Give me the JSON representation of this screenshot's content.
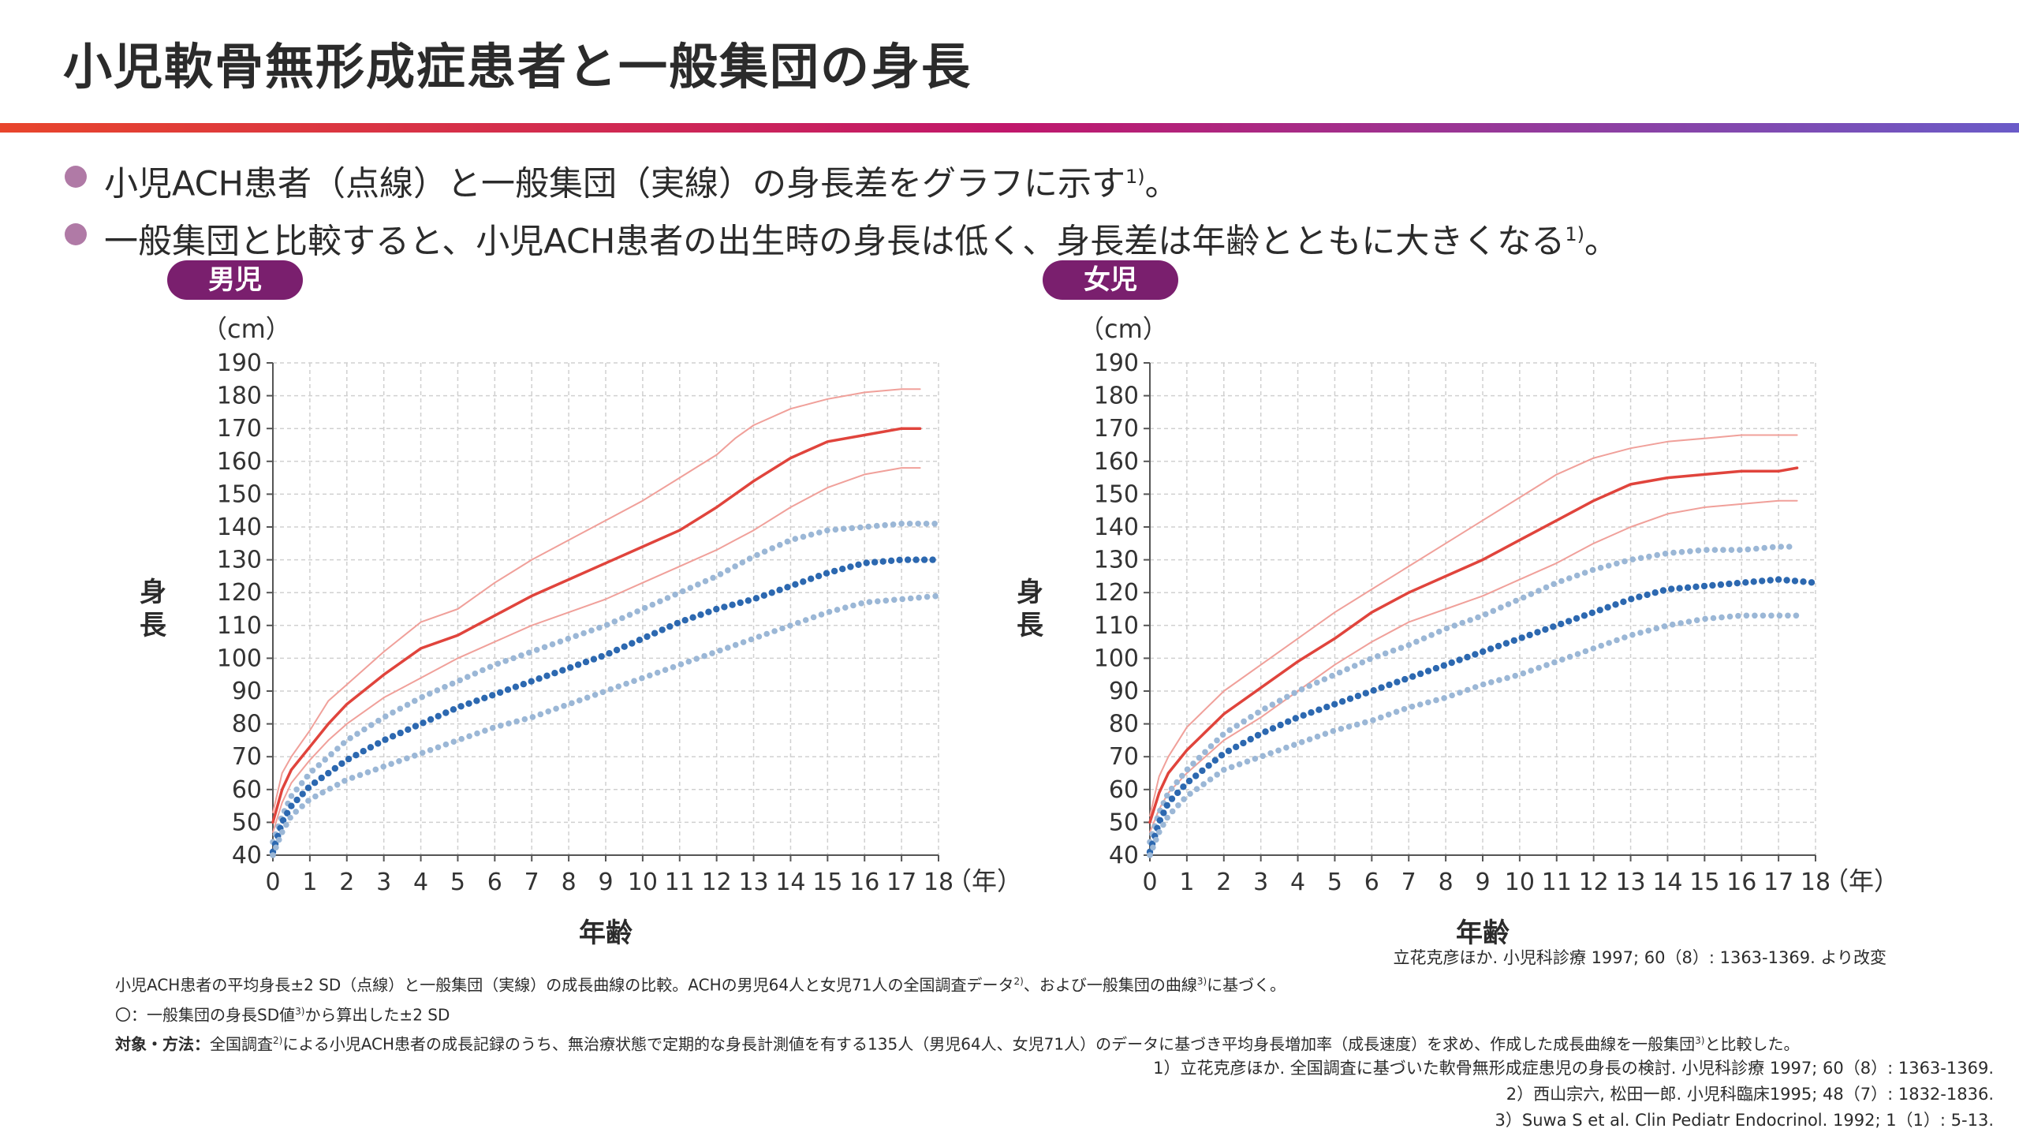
{
  "title": "小児軟骨無形成症患者と一般集団の身長",
  "colors": {
    "accent_gradient": [
      "#e8452c",
      "#c0176b",
      "#6a5bc8"
    ],
    "bullet_dot": "#b07aa6",
    "badge": "#7a1f6e",
    "general_mean": "#e0443c",
    "general_sd": "#f0a09a",
    "ach_mean": "#2c68b0",
    "ach_sd": "#9bb7d6",
    "grid": "#d0d0d0",
    "axis": "#555555"
  },
  "bullets": [
    {
      "text": "小児ACH患者（点線）と一般集団（実線）の身長差をグラフに示す",
      "sup": "1)",
      "tail": "。"
    },
    {
      "text": "一般集団と比較すると、小児ACH患者の出生時の身長は低く、身長差は年齢とともに大きくなる",
      "sup": "1)",
      "tail": "。"
    }
  ],
  "panels": [
    {
      "badge": "男児",
      "unit": "（cm）",
      "ylabel": "身長",
      "xlabel": "年齢",
      "x_unit": "（年）"
    },
    {
      "badge": "女児",
      "unit": "（cm）",
      "ylabel": "身長",
      "xlabel": "年齢",
      "x_unit": "（年）"
    }
  ],
  "source": {
    "text": "立花克彦ほか. 小児科診療 1997; 60（8）: 1363-1369. より改変"
  },
  "notes": {
    "line1_a": "小児ACH患者の平均身長±2 SD（点線）と一般集団（実線）の成長曲線の比較。ACHの男児64人と女児71人の全国調査データ",
    "line1_sup1": "2)",
    "line1_b": "、および一般集団の曲線",
    "line1_sup2": "3)",
    "line1_c": "に基づく。",
    "line2_a": "〇：一般集団の身長SD値",
    "line2_sup": "3)",
    "line2_b": "から算出した±2 SD",
    "line3_label": "対象・方法：",
    "line3_a": "全国調査",
    "line3_sup1": "2)",
    "line3_b": "による小児ACH患者の成長記録のうち、無治療状態で定期的な身長計測値を有する135人（男児64人、女児71人）のデータに基づき平均身長増加率（成長速度）を求め、作成した成長曲線を一般集団",
    "line3_sup2": "3)",
    "line3_c": "と比較した。"
  },
  "references": [
    "1）立花克彦ほか. 全国調査に基づいた軟骨無形成症患児の身長の検討. 小児科診療 1997; 60（8）: 1363-1369.",
    "2）西山宗六, 松田一郎. 小児科臨床1995; 48（7）: 1832-1836.",
    "3）Suwa S et al. Clin Pediatr Endocrinol. 1992; 1（1）: 5-13."
  ],
  "chart_data": [
    {
      "type": "line",
      "title": "男児",
      "xlabel": "年齢",
      "ylabel": "身長",
      "x_unit": "（年）",
      "y_unit": "（cm）",
      "xlim": [
        0,
        18
      ],
      "ylim": [
        40,
        190
      ],
      "grid": true,
      "x_ticks": [
        0,
        1,
        2,
        3,
        4,
        5,
        6,
        7,
        8,
        9,
        10,
        11,
        12,
        13,
        14,
        15,
        16,
        17,
        18
      ],
      "y_ticks": [
        40,
        50,
        60,
        70,
        80,
        90,
        100,
        110,
        120,
        130,
        140,
        150,
        160,
        170,
        180,
        190
      ],
      "series": [
        {
          "style": "general_sd",
          "x": [
            0,
            0.25,
            0.5,
            1,
            1.5,
            2,
            3,
            4,
            5,
            6,
            7,
            8,
            9,
            10,
            11,
            12,
            12.5,
            13,
            14,
            15,
            16,
            17,
            17.5
          ],
          "y": [
            53,
            65,
            70,
            78,
            87,
            92,
            102,
            111,
            115,
            123,
            130,
            136,
            142,
            148,
            155,
            162,
            167,
            171,
            176,
            179,
            181,
            182,
            182
          ]
        },
        {
          "style": "general_mean",
          "x": [
            0,
            0.25,
            0.5,
            1,
            1.5,
            2,
            3,
            4,
            5,
            6,
            7,
            8,
            9,
            10,
            11,
            12,
            12.5,
            13,
            14,
            15,
            16,
            17,
            17.5
          ],
          "y": [
            50,
            60,
            66,
            73,
            80,
            86,
            95,
            103,
            107,
            113,
            119,
            124,
            129,
            134,
            139,
            146,
            150,
            154,
            161,
            166,
            168,
            170,
            170
          ]
        },
        {
          "style": "general_sd",
          "x": [
            0,
            0.25,
            0.5,
            1,
            1.5,
            2,
            3,
            4,
            5,
            6,
            7,
            8,
            9,
            10,
            11,
            12,
            12.5,
            13,
            14,
            15,
            16,
            17,
            17.5
          ],
          "y": [
            47,
            56,
            62,
            69,
            75,
            80,
            88,
            94,
            100,
            105,
            110,
            114,
            118,
            123,
            128,
            133,
            136,
            139,
            146,
            152,
            156,
            158,
            158
          ]
        },
        {
          "style": "ach_sd",
          "x": [
            0,
            0.25,
            0.5,
            1,
            2,
            3,
            4,
            5,
            6,
            7,
            8,
            9,
            10,
            11,
            12,
            13,
            14,
            15,
            16,
            17,
            18
          ],
          "y": [
            44,
            52,
            58,
            65,
            75,
            82,
            88,
            93,
            98,
            102,
            106,
            110,
            115,
            120,
            125,
            131,
            136,
            139,
            140,
            141,
            141
          ]
        },
        {
          "style": "ach_mean",
          "x": [
            0,
            0.25,
            0.5,
            1,
            2,
            3,
            4,
            5,
            6,
            7,
            8,
            9,
            10,
            11,
            12,
            13,
            14,
            15,
            16,
            17,
            18
          ],
          "y": [
            41,
            50,
            55,
            61,
            69,
            75,
            80,
            85,
            89,
            93,
            97,
            101,
            106,
            111,
            115,
            118,
            122,
            126,
            129,
            130,
            130
          ]
        },
        {
          "style": "ach_sd",
          "x": [
            0,
            0.25,
            0.5,
            1,
            2,
            3,
            4,
            5,
            6,
            7,
            8,
            9,
            10,
            11,
            12,
            13,
            14,
            15,
            16,
            17,
            18
          ],
          "y": [
            40,
            47,
            52,
            57,
            63,
            67,
            71,
            75,
            79,
            82,
            86,
            90,
            94,
            98,
            102,
            106,
            110,
            114,
            117,
            118,
            119
          ]
        }
      ]
    },
    {
      "type": "line",
      "title": "女児",
      "xlabel": "年齢",
      "ylabel": "身長",
      "x_unit": "（年）",
      "y_unit": "（cm）",
      "xlim": [
        0,
        18
      ],
      "ylim": [
        40,
        190
      ],
      "grid": true,
      "x_ticks": [
        0,
        1,
        2,
        3,
        4,
        5,
        6,
        7,
        8,
        9,
        10,
        11,
        12,
        13,
        14,
        15,
        16,
        17,
        18
      ],
      "y_ticks": [
        40,
        50,
        60,
        70,
        80,
        90,
        100,
        110,
        120,
        130,
        140,
        150,
        160,
        170,
        180,
        190
      ],
      "series": [
        {
          "style": "general_sd",
          "x": [
            0,
            0.25,
            0.5,
            1,
            2,
            3,
            4,
            5,
            6,
            7,
            8,
            9,
            10,
            11,
            12,
            13,
            14,
            15,
            16,
            17,
            17.5
          ],
          "y": [
            52,
            64,
            70,
            79,
            90,
            98,
            106,
            114,
            121,
            128,
            135,
            142,
            149,
            156,
            161,
            164,
            166,
            167,
            168,
            168,
            168
          ]
        },
        {
          "style": "general_mean",
          "x": [
            0,
            0.25,
            0.5,
            1,
            2,
            3,
            4,
            5,
            6,
            7,
            8,
            9,
            10,
            11,
            12,
            13,
            14,
            15,
            16,
            17,
            17.5
          ],
          "y": [
            50,
            59,
            65,
            72,
            83,
            91,
            99,
            106,
            114,
            120,
            125,
            130,
            136,
            142,
            148,
            153,
            155,
            156,
            157,
            157,
            158
          ]
        },
        {
          "style": "general_sd",
          "x": [
            0,
            0.25,
            0.5,
            1,
            2,
            3,
            4,
            5,
            6,
            7,
            8,
            9,
            10,
            11,
            12,
            13,
            14,
            15,
            16,
            17,
            17.5
          ],
          "y": [
            47,
            54,
            59,
            65,
            75,
            82,
            90,
            98,
            105,
            111,
            115,
            119,
            124,
            129,
            135,
            140,
            144,
            146,
            147,
            148,
            148
          ]
        },
        {
          "style": "ach_sd",
          "x": [
            0,
            0.25,
            0.5,
            1,
            2,
            3,
            4,
            5,
            6,
            7,
            8,
            9,
            10,
            11,
            12,
            13,
            14,
            15,
            16,
            17,
            17.5
          ],
          "y": [
            44,
            53,
            59,
            66,
            77,
            84,
            90,
            95,
            100,
            104,
            109,
            113,
            118,
            123,
            127,
            130,
            132,
            133,
            133,
            134,
            134
          ]
        },
        {
          "style": "ach_mean",
          "x": [
            0,
            0.25,
            0.5,
            1,
            2,
            3,
            4,
            5,
            6,
            7,
            8,
            9,
            10,
            11,
            12,
            13,
            14,
            15,
            16,
            17,
            18
          ],
          "y": [
            41,
            50,
            56,
            62,
            71,
            77,
            82,
            86,
            90,
            94,
            98,
            102,
            106,
            110,
            114,
            118,
            121,
            122,
            123,
            124,
            123
          ]
        },
        {
          "style": "ach_sd",
          "x": [
            0,
            0.25,
            0.5,
            1,
            2,
            3,
            4,
            5,
            6,
            7,
            8,
            9,
            10,
            11,
            12,
            13,
            14,
            15,
            16,
            17,
            17.5
          ],
          "y": [
            40,
            47,
            52,
            58,
            66,
            70,
            74,
            78,
            81,
            85,
            88,
            92,
            95,
            99,
            103,
            107,
            110,
            112,
            113,
            113,
            113
          ]
        }
      ]
    }
  ]
}
